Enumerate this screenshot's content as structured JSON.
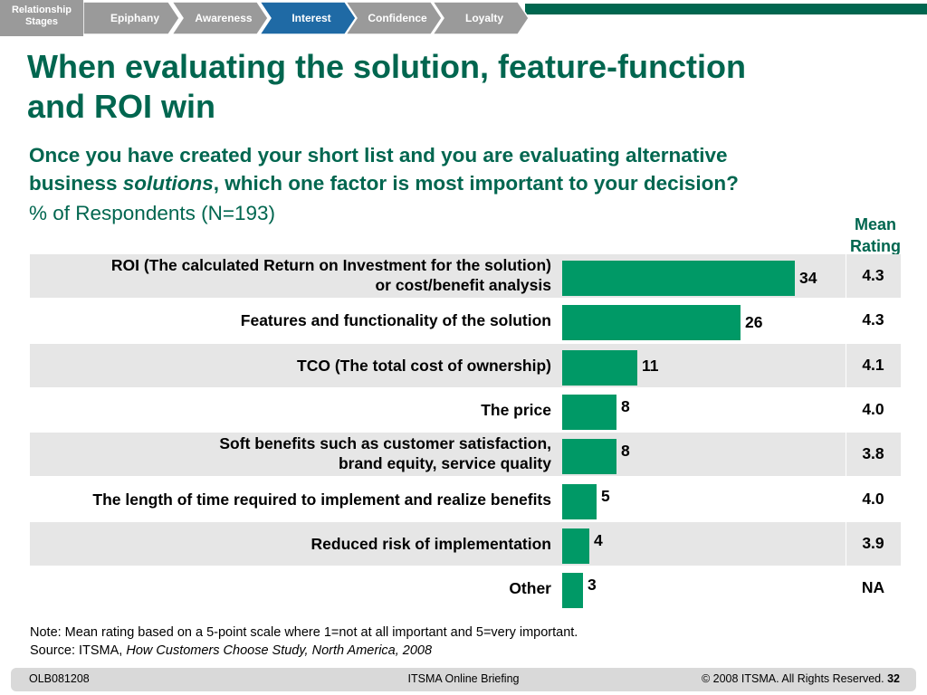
{
  "nav": {
    "stage_label": [
      "Relationship",
      "Stages"
    ],
    "stages": [
      {
        "label": "Epiphany",
        "active": false
      },
      {
        "label": "Awareness",
        "active": false
      },
      {
        "label": "Interest",
        "active": true
      },
      {
        "label": "Confidence",
        "active": false
      },
      {
        "label": "Loyalty",
        "active": false
      }
    ]
  },
  "title": [
    "When evaluating the solution, feature-function",
    "and ROI win"
  ],
  "question": {
    "part1": "Once you have created your short list and you are evaluating alternative",
    "part2_prefix": "business ",
    "part2_italic": "solutions",
    "part2_suffix": ", which one factor is most important to your decision?",
    "respondents": "% of Respondents (N=193)"
  },
  "mean_header": [
    "Mean",
    "Rating"
  ],
  "chart_data": {
    "type": "bar",
    "orientation": "horizontal",
    "categories": [
      [
        "ROI (The calculated Return on Investment for the solution)",
        "or cost/benefit analysis"
      ],
      [
        "Features and functionality of the solution"
      ],
      [
        "TCO (The total cost of ownership)"
      ],
      [
        "The price"
      ],
      [
        "Soft benefits such as customer satisfaction,",
        "brand equity, service quality"
      ],
      [
        "The length of time required to implement and realize benefits"
      ],
      [
        "Reduced risk of implementation"
      ],
      [
        "Other"
      ]
    ],
    "values": [
      34,
      26,
      11,
      8,
      8,
      5,
      4,
      3
    ],
    "mean_rating": [
      "4.3",
      "4.3",
      "4.1",
      "4.0",
      "3.8",
      "4.0",
      "3.9",
      "NA"
    ],
    "xlim": [
      0,
      38
    ],
    "bar_color": "#009966",
    "shaded_row_color": "#e6e6e6"
  },
  "note": {
    "line1": "Note: Mean rating based on a 5-point scale where 1=not at all important and 5=very important.",
    "source_prefix": "Source: ITSMA, ",
    "source_italic": "How Customers Choose Study, North America, 2008"
  },
  "footer": {
    "left": "OLB081208",
    "center": "ITSMA Online Briefing",
    "right_prefix": "© 2008 ITSMA. All Rights Reserved. ",
    "page": "32"
  },
  "colors": {
    "brand_green": "#00664f",
    "active_tab": "#1f6aa5",
    "inactive_tab": "#9a9a9a"
  }
}
